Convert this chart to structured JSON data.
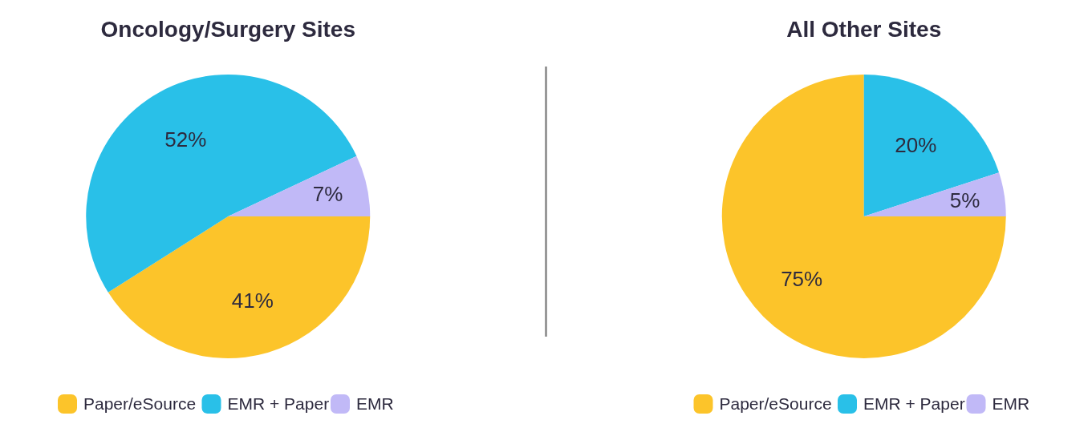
{
  "chart_data": [
    {
      "type": "pie",
      "title": "Oncology/Surgery Sites",
      "categories": [
        "Paper/eSource",
        "EMR + Paper",
        "EMR"
      ],
      "values": [
        41,
        52,
        7
      ],
      "colors": [
        "#fcc42a",
        "#29c0e8",
        "#c1b9f7"
      ],
      "value_labels": [
        "41%",
        "52%",
        "7%"
      ],
      "legend": "bottom"
    },
    {
      "type": "pie",
      "title": "All Other Sites",
      "categories": [
        "Paper/eSource",
        "EMR + Paper",
        "EMR"
      ],
      "values": [
        75,
        20,
        5
      ],
      "colors": [
        "#fcc42a",
        "#29c0e8",
        "#c1b9f7"
      ],
      "value_labels": [
        "75%",
        "20%",
        "5%"
      ],
      "legend": "bottom"
    }
  ]
}
